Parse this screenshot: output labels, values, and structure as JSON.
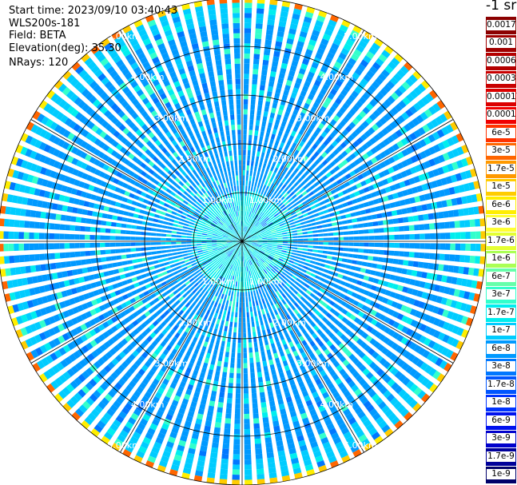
{
  "info": {
    "start_time": "Start time: 2023/09/10 03:40:43",
    "instrument": "WLS200s-181",
    "field": "Field: BETA",
    "elevation": "Elevation(deg): 35.30",
    "nrays": "NRays: 120"
  },
  "colorbar": {
    "unit": "-1 sr",
    "labels": [
      "0.0017",
      "0.001",
      "0.0006",
      "0.0003",
      "0.00017",
      "0.0001",
      "6e-5",
      "3e-5",
      "1.7e-5",
      "1e-5",
      "6e-6",
      "3e-6",
      "1.7e-6",
      "1e-6",
      "6e-7",
      "3e-7",
      "1.7e-7",
      "1e-7",
      "6e-8",
      "3e-8",
      "1.7e-8",
      "1e-8",
      "6e-9",
      "3e-9",
      "1.7e-9",
      "1e-9"
    ],
    "colors": [
      "#8b0000",
      "#a00000",
      "#b40000",
      "#c80000",
      "#dc0000",
      "#f00000",
      "#ff3300",
      "#ff6600",
      "#ff9900",
      "#ffcc00",
      "#ffee00",
      "#ffff33",
      "#e5ff33",
      "#aaff55",
      "#66ffaa",
      "#33ffcc",
      "#00eeee",
      "#00ccff",
      "#0099ff",
      "#0077ff",
      "#0055ff",
      "#0033ff",
      "#0011ee",
      "#0000cc",
      "#00009a",
      "#00006a"
    ]
  },
  "chart_data": {
    "type": "heatmap",
    "projection": "polar",
    "n_rays": 120,
    "range_rings": [
      "1.00km",
      "2.00km",
      "3.00km",
      "4.00km",
      "5.00km"
    ],
    "max_range_km": 5.0,
    "ring_label_angles_deg": [
      30,
      150,
      210,
      330
    ],
    "bands": [
      {
        "from_km": 0.0,
        "to_km": 1.0,
        "typical": "1.7e-7"
      },
      {
        "from_km": 1.0,
        "to_km": 4.5,
        "typical": "6e-8"
      },
      {
        "from_km": 4.5,
        "to_km": 4.85,
        "typical": "1e-7"
      },
      {
        "from_km": 4.85,
        "to_km": 5.0,
        "typical": "1.7e-5"
      }
    ]
  }
}
